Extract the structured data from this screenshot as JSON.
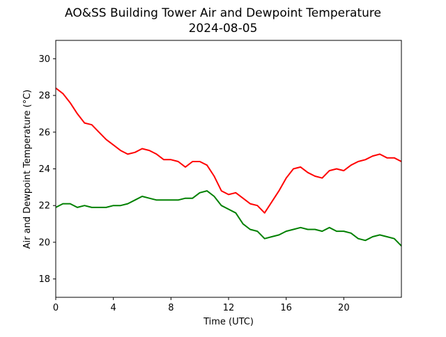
{
  "chart_data": {
    "type": "line",
    "title": "AO&SS Building Tower Air and Dewpoint Temperature",
    "subtitle": "2024-08-05",
    "xlabel": "Time (UTC)",
    "ylabel": "Air and Dewpoint Temperature (°C)",
    "xlim": [
      0,
      24
    ],
    "ylim": [
      17,
      31
    ],
    "xticks": [
      0,
      4,
      8,
      12,
      16,
      20
    ],
    "yticks": [
      18,
      20,
      22,
      24,
      26,
      28,
      30
    ],
    "grid": false,
    "series": [
      {
        "color": "#ff0000",
        "x": [
          0,
          0.5,
          1,
          1.5,
          2,
          2.5,
          3,
          3.5,
          4,
          4.5,
          5,
          5.5,
          6,
          6.5,
          7,
          7.5,
          8,
          8.5,
          9,
          9.5,
          10,
          10.5,
          11,
          11.5,
          12,
          12.5,
          13,
          13.5,
          14,
          14.5,
          15,
          15.5,
          16,
          16.5,
          17,
          17.5,
          18,
          18.5,
          19,
          19.5,
          20,
          20.5,
          21,
          21.5,
          22,
          22.5,
          23,
          23.5,
          24
        ],
        "values": [
          28.4,
          28.1,
          27.6,
          27.0,
          26.5,
          26.4,
          26.0,
          25.6,
          25.3,
          25.0,
          24.8,
          24.9,
          25.1,
          25.0,
          24.8,
          24.5,
          24.5,
          24.4,
          24.1,
          24.4,
          24.4,
          24.2,
          23.6,
          22.8,
          22.6,
          22.7,
          22.4,
          22.1,
          22.0,
          21.6,
          22.2,
          22.8,
          23.5,
          24.0,
          24.1,
          23.8,
          23.6,
          23.5,
          23.9,
          24.0,
          23.9,
          24.2,
          24.4,
          24.5,
          24.7,
          24.8,
          24.6,
          24.6,
          24.4
        ]
      },
      {
        "color": "#008000",
        "x": [
          0,
          0.5,
          1,
          1.5,
          2,
          2.5,
          3,
          3.5,
          4,
          4.5,
          5,
          5.5,
          6,
          6.5,
          7,
          7.5,
          8,
          8.5,
          9,
          9.5,
          10,
          10.5,
          11,
          11.5,
          12,
          12.5,
          13,
          13.5,
          14,
          14.5,
          15,
          15.5,
          16,
          16.5,
          17,
          17.5,
          18,
          18.5,
          19,
          19.5,
          20,
          20.5,
          21,
          21.5,
          22,
          22.5,
          23,
          23.5,
          24
        ],
        "values": [
          21.9,
          22.1,
          22.1,
          21.9,
          22.0,
          21.9,
          21.9,
          21.9,
          22.0,
          22.0,
          22.1,
          22.3,
          22.5,
          22.4,
          22.3,
          22.3,
          22.3,
          22.3,
          22.4,
          22.4,
          22.7,
          22.8,
          22.5,
          22.0,
          21.8,
          21.6,
          21.0,
          20.7,
          20.6,
          20.2,
          20.3,
          20.4,
          20.6,
          20.7,
          20.8,
          20.7,
          20.7,
          20.6,
          20.8,
          20.6,
          20.6,
          20.5,
          20.2,
          20.1,
          20.3,
          20.4,
          20.3,
          20.2,
          19.8
        ]
      }
    ]
  }
}
